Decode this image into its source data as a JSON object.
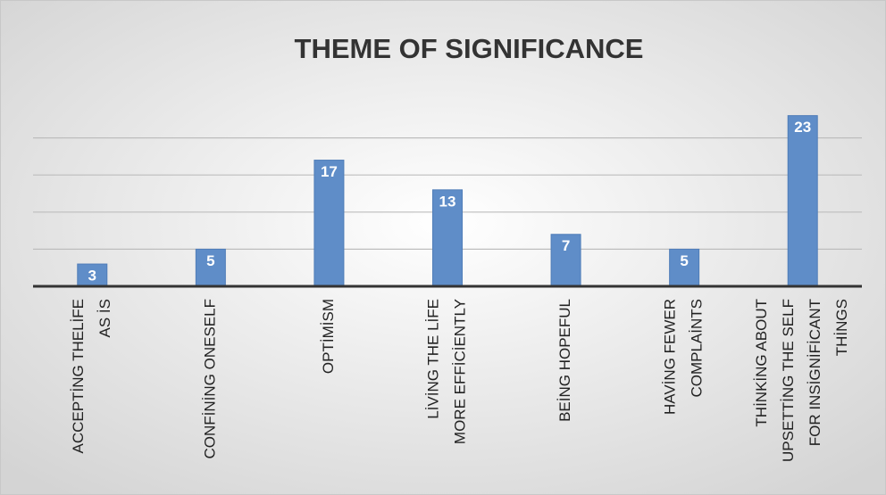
{
  "chart_data": {
    "type": "bar",
    "title": "THEME OF SIGNIFICANCE",
    "categories": [
      [
        "ACCEPTİNG THELİFE",
        "AS İS"
      ],
      [
        "CONFİNİNG ONESELF"
      ],
      [
        "OPTİMİSM"
      ],
      [
        "LİVİNG THE LİFE",
        "MORE EFFİCİENTLY"
      ],
      [
        "BEİNG HOPEFUL"
      ],
      [
        "HAVİNG FEWER",
        "COMPLAİNTS"
      ],
      [
        "THİNKİNG ABOUT",
        "UPSETTİNG THE SELF",
        "FOR INSİGNİFİCANT",
        "THİNGS"
      ]
    ],
    "values": [
      3,
      5,
      17,
      13,
      7,
      5,
      23
    ],
    "color": "#5f8dc8",
    "ylim": [
      0,
      25
    ],
    "yticks": [
      0,
      5,
      10,
      15,
      20
    ],
    "grid": true
  }
}
